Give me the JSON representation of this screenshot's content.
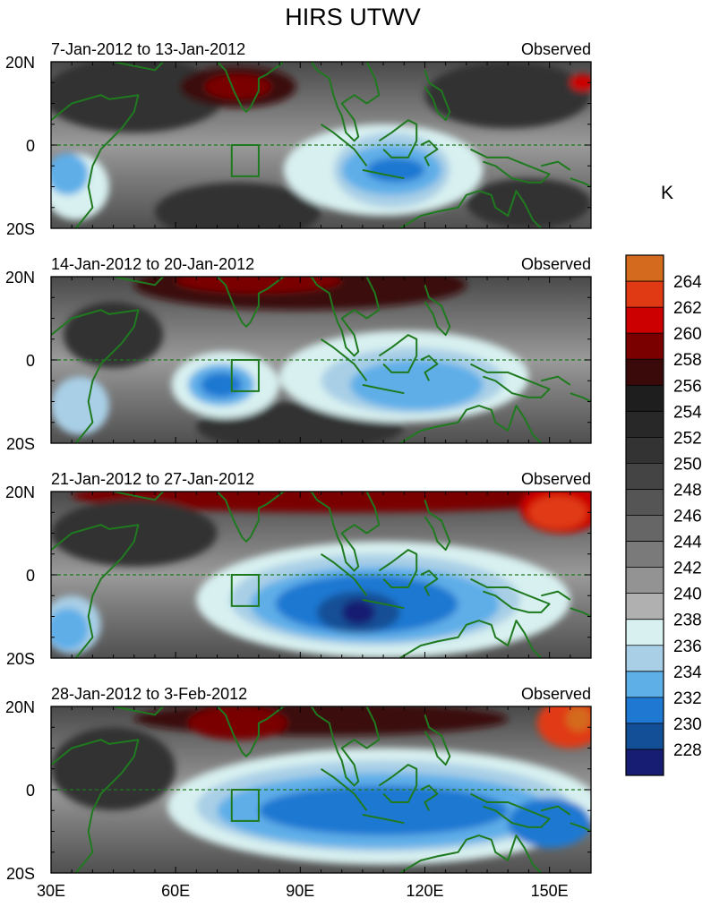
{
  "title": "HIRS UTWV",
  "unit": "K",
  "colors": {
    "land_outline": "#1f7a1f",
    "equator_line": "#1f7a1f",
    "box_outline": "#1f7a1f"
  },
  "chart_data": {
    "type": "heatmap",
    "x_axis": {
      "range": [
        30,
        160
      ],
      "ticks": [
        30,
        60,
        90,
        120,
        150
      ],
      "tick_labels": [
        "30E",
        "60E",
        "90E",
        "120E",
        "150E"
      ]
    },
    "y_axis": {
      "range": [
        -20,
        20
      ],
      "ticks": [
        20,
        0,
        -20
      ],
      "tick_labels": [
        "20N",
        "0",
        "20S"
      ]
    },
    "colorbar": {
      "placement": "right",
      "levels": [
        {
          "label": "264",
          "color": "#d46a1e"
        },
        {
          "label": "262",
          "color": "#e03a14"
        },
        {
          "label": "260",
          "color": "#cc0000"
        },
        {
          "label": "258",
          "color": "#7a0000"
        },
        {
          "label": "256",
          "color": "#3a0a0a"
        },
        {
          "label": "254",
          "color": "#1e1e1e"
        },
        {
          "label": "252",
          "color": "#282828"
        },
        {
          "label": "250",
          "color": "#333333"
        },
        {
          "label": "248",
          "color": "#444444"
        },
        {
          "label": "246",
          "color": "#555555"
        },
        {
          "label": "244",
          "color": "#666666"
        },
        {
          "label": "242",
          "color": "#7a7a7a"
        },
        {
          "label": "240",
          "color": "#939393"
        },
        {
          "label": "238",
          "color": "#b0b0b0"
        },
        {
          "label": "236",
          "color": "#d8f0f0"
        },
        {
          "label": "234",
          "color": "#a9cfe6"
        },
        {
          "label": "232",
          "color": "#5eaee8"
        },
        {
          "label": "230",
          "color": "#1f78d1"
        },
        {
          "label": "228",
          "color": "#124f96"
        },
        {
          "label": "",
          "color": "#171d72"
        }
      ]
    },
    "panels": [
      {
        "left_label": "7-Jan-2012 to 13-Jan-2012",
        "right_label": "Observed",
        "features": [
          {
            "shape": "ellipse",
            "lon": 50,
            "lat": 12,
            "rlon": 22,
            "rlat": 9,
            "level": "250"
          },
          {
            "shape": "ellipse",
            "lon": 75,
            "lat": 14,
            "rlon": 14,
            "rlat": 5,
            "level": "256"
          },
          {
            "shape": "ellipse",
            "lon": 75,
            "lat": 14,
            "rlon": 8,
            "rlat": 3,
            "level": "258"
          },
          {
            "shape": "ellipse",
            "lon": 140,
            "lat": 12,
            "rlon": 20,
            "rlat": 8,
            "level": "250"
          },
          {
            "shape": "ellipse",
            "lon": 158,
            "lat": 15,
            "rlon": 3,
            "rlat": 2,
            "level": "260"
          },
          {
            "shape": "ellipse",
            "lon": 75,
            "lat": -16,
            "rlon": 20,
            "rlat": 7,
            "level": "250"
          },
          {
            "shape": "ellipse",
            "lon": 145,
            "lat": -14,
            "rlon": 15,
            "rlat": 6,
            "level": "250"
          },
          {
            "shape": "ellipse",
            "lon": 36,
            "lat": -10,
            "rlon": 8,
            "rlat": 8,
            "level": "236"
          },
          {
            "shape": "ellipse",
            "lon": 34,
            "lat": -7,
            "rlon": 5,
            "rlat": 5,
            "level": "232"
          },
          {
            "shape": "ellipse",
            "lon": 110,
            "lat": -6,
            "rlon": 24,
            "rlat": 11,
            "level": "236"
          },
          {
            "shape": "ellipse",
            "lon": 112,
            "lat": -6,
            "rlon": 14,
            "rlat": 9,
            "level": "234"
          },
          {
            "shape": "ellipse",
            "lon": 112,
            "lat": -6,
            "rlon": 12,
            "rlat": 6,
            "level": "232"
          },
          {
            "shape": "ellipse",
            "lon": 113,
            "lat": -6,
            "rlon": 7,
            "rlat": 3,
            "level": "230"
          }
        ]
      },
      {
        "left_label": "14-Jan-2012 to 20-Jan-2012",
        "right_label": "Observed",
        "features": [
          {
            "shape": "ellipse",
            "lon": 90,
            "lat": 18,
            "rlon": 40,
            "rlat": 6,
            "level": "256"
          },
          {
            "shape": "ellipse",
            "lon": 80,
            "lat": 19,
            "rlon": 20,
            "rlat": 3,
            "level": "258"
          },
          {
            "shape": "ellipse",
            "lon": 45,
            "lat": 6,
            "rlon": 12,
            "rlat": 8,
            "level": "250"
          },
          {
            "shape": "ellipse",
            "lon": 90,
            "lat": -16,
            "rlon": 25,
            "rlat": 6,
            "level": "250"
          },
          {
            "shape": "ellipse",
            "lon": 72,
            "lat": -6,
            "rlon": 13,
            "rlat": 8,
            "level": "236"
          },
          {
            "shape": "ellipse",
            "lon": 71,
            "lat": -6,
            "rlon": 8,
            "rlat": 5,
            "level": "232"
          },
          {
            "shape": "ellipse",
            "lon": 71,
            "lat": -6,
            "rlon": 5,
            "rlat": 3,
            "level": "230"
          },
          {
            "shape": "ellipse",
            "lon": 37,
            "lat": -11,
            "rlon": 7,
            "rlat": 7,
            "level": "234"
          },
          {
            "shape": "ellipse",
            "lon": 115,
            "lat": -4,
            "rlon": 30,
            "rlat": 11,
            "level": "236"
          },
          {
            "shape": "ellipse",
            "lon": 117,
            "lat": -5,
            "rlon": 22,
            "rlat": 8,
            "level": "234"
          },
          {
            "shape": "ellipse",
            "lon": 118,
            "lat": -6,
            "rlon": 16,
            "rlat": 6,
            "level": "232"
          }
        ]
      },
      {
        "left_label": "21-Jan-2012 to 27-Jan-2012",
        "right_label": "Observed",
        "features": [
          {
            "shape": "ellipse",
            "lon": 100,
            "lat": 19,
            "rlon": 65,
            "rlat": 4,
            "level": "258"
          },
          {
            "shape": "ellipse",
            "lon": 153,
            "lat": 16,
            "rlon": 10,
            "rlat": 6,
            "level": "260"
          },
          {
            "shape": "ellipse",
            "lon": 152,
            "lat": 15,
            "rlon": 7,
            "rlat": 4,
            "level": "262"
          },
          {
            "shape": "ellipse",
            "lon": 50,
            "lat": 10,
            "rlon": 20,
            "rlat": 8,
            "level": "250"
          },
          {
            "shape": "ellipse",
            "lon": 35,
            "lat": -12,
            "rlon": 7,
            "rlat": 7,
            "level": "234"
          },
          {
            "shape": "ellipse",
            "lon": 34,
            "lat": -13,
            "rlon": 5,
            "rlat": 5,
            "level": "232"
          },
          {
            "shape": "ellipse",
            "lon": 110,
            "lat": -6,
            "rlon": 45,
            "rlat": 14,
            "level": "236"
          },
          {
            "shape": "ellipse",
            "lon": 108,
            "lat": -6,
            "rlon": 35,
            "rlat": 11,
            "level": "234"
          },
          {
            "shape": "ellipse",
            "lon": 108,
            "lat": -7,
            "rlon": 30,
            "rlat": 9,
            "level": "232"
          },
          {
            "shape": "ellipse",
            "lon": 106,
            "lat": -7,
            "rlon": 22,
            "rlat": 7,
            "level": "230"
          },
          {
            "shape": "ellipse",
            "lon": 104,
            "lat": -9,
            "rlon": 10,
            "rlat": 5,
            "level": "228"
          },
          {
            "shape": "ellipse",
            "lon": 104,
            "lat": -9,
            "rlon": 4,
            "rlat": 3,
            "level": ""
          }
        ]
      },
      {
        "left_label": "28-Jan-2012 to 3-Feb-2012",
        "right_label": "Observed",
        "features": [
          {
            "shape": "ellipse",
            "lon": 95,
            "lat": 17,
            "rlon": 45,
            "rlat": 4,
            "level": "256"
          },
          {
            "shape": "ellipse",
            "lon": 75,
            "lat": 16,
            "rlon": 12,
            "rlat": 4,
            "level": "258"
          },
          {
            "shape": "ellipse",
            "lon": 155,
            "lat": 16,
            "rlon": 8,
            "rlat": 6,
            "level": "262"
          },
          {
            "shape": "ellipse",
            "lon": 157,
            "lat": 17,
            "rlon": 3,
            "rlat": 3,
            "level": "264"
          },
          {
            "shape": "ellipse",
            "lon": 45,
            "lat": 5,
            "rlon": 15,
            "rlat": 10,
            "level": "250"
          },
          {
            "shape": "ellipse",
            "lon": 110,
            "lat": -4,
            "rlon": 52,
            "rlat": 14,
            "level": "236"
          },
          {
            "shape": "ellipse",
            "lon": 110,
            "lat": -4,
            "rlon": 45,
            "rlat": 11,
            "level": "234"
          },
          {
            "shape": "ellipse",
            "lon": 110,
            "lat": -5,
            "rlon": 40,
            "rlat": 9,
            "level": "232"
          },
          {
            "shape": "ellipse",
            "lon": 110,
            "lat": -5,
            "rlon": 30,
            "rlat": 6,
            "level": "230"
          },
          {
            "shape": "ellipse",
            "lon": 150,
            "lat": -8,
            "rlon": 10,
            "rlat": 6,
            "level": "230"
          }
        ]
      }
    ]
  }
}
